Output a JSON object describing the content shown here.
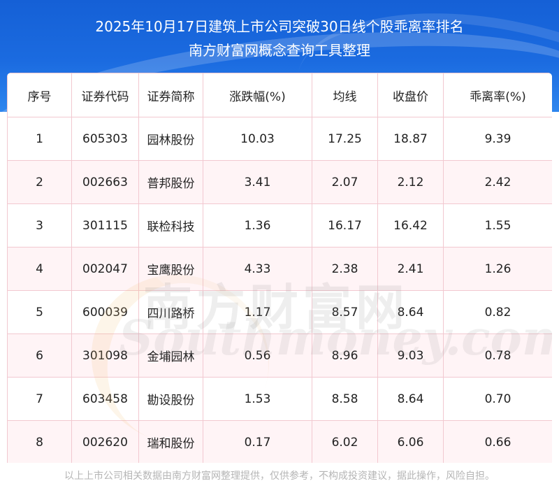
{
  "header": {
    "title_line1": "2025年10月17日建筑上市公司突破30日线个股乖离率排名",
    "title_line2": "南方财富网概念查询工具整理"
  },
  "table": {
    "columns": [
      "序号",
      "证券代码",
      "证券简称",
      "涨跌幅(%)",
      "均线",
      "收盘价",
      "乖离率(%)"
    ],
    "rows": [
      [
        "1",
        "605303",
        "园林股份",
        "10.03",
        "17.25",
        "18.87",
        "9.39"
      ],
      [
        "2",
        "002663",
        "普邦股份",
        "3.41",
        "2.07",
        "2.12",
        "2.42"
      ],
      [
        "3",
        "301115",
        "联检科技",
        "1.36",
        "16.17",
        "16.42",
        "1.55"
      ],
      [
        "4",
        "002047",
        "宝鹰股份",
        "4.33",
        "2.38",
        "2.41",
        "1.26"
      ],
      [
        "5",
        "600039",
        "四川路桥",
        "1.17",
        "8.57",
        "8.64",
        "0.82"
      ],
      [
        "6",
        "301098",
        "金埔园林",
        "0.56",
        "8.96",
        "9.03",
        "0.78"
      ],
      [
        "7",
        "603458",
        "勘设股份",
        "1.53",
        "8.58",
        "8.64",
        "0.70"
      ],
      [
        "8",
        "002620",
        "瑞和股份",
        "0.17",
        "6.02",
        "6.06",
        "0.66"
      ]
    ]
  },
  "watermark": {
    "cn": "南方财富网",
    "en": "Southmoney.com"
  },
  "footer": {
    "disclaimer": "以上上市公司相关数据由南方财富网整理提供，仅供参考，不构成投资建议，据此操作，风险自担。"
  },
  "colors": {
    "header_blue": "#1b6be0",
    "grid_pink": "#f2c8d0",
    "row_tint": "#fff0f3"
  }
}
